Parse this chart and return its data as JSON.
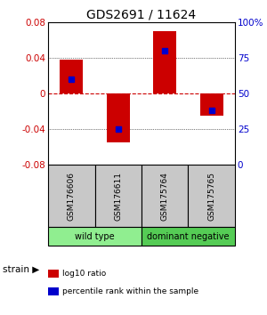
{
  "title": "GDS2691 / 11624",
  "samples": [
    "GSM176606",
    "GSM176611",
    "GSM175764",
    "GSM175765"
  ],
  "log10_ratio": [
    0.038,
    -0.055,
    0.07,
    -0.025
  ],
  "percentile_rank": [
    0.6,
    0.25,
    0.8,
    0.38
  ],
  "ylim_left": [
    -0.08,
    0.08
  ],
  "ylim_right": [
    0,
    1
  ],
  "yticks_left": [
    -0.08,
    -0.04,
    0,
    0.04,
    0.08
  ],
  "yticks_right": [
    0,
    0.25,
    0.5,
    0.75,
    1.0
  ],
  "ytick_labels_right": [
    "0",
    "25",
    "50",
    "75",
    "100%"
  ],
  "ytick_labels_left": [
    "-0.08",
    "-0.04",
    "0",
    "0.04",
    "0.08"
  ],
  "groups": [
    {
      "label": "wild type",
      "samples": [
        0,
        1
      ],
      "color": "#90EE90"
    },
    {
      "label": "dominant negative",
      "samples": [
        2,
        3
      ],
      "color": "#55CC55"
    }
  ],
  "bar_color": "#CC0000",
  "dot_color": "#0000CC",
  "bar_width": 0.5,
  "title_fontsize": 10,
  "axis_label_color_left": "#CC0000",
  "axis_label_color_right": "#0000CC",
  "background_color": "#ffffff",
  "plot_bg_color": "#ffffff",
  "grid_color": "#000000",
  "zero_line_color": "#CC0000",
  "sample_box_color": "#C8C8C8",
  "legend_items": [
    {
      "color": "#CC0000",
      "label": "log10 ratio"
    },
    {
      "color": "#0000CC",
      "label": "percentile rank within the sample"
    }
  ]
}
